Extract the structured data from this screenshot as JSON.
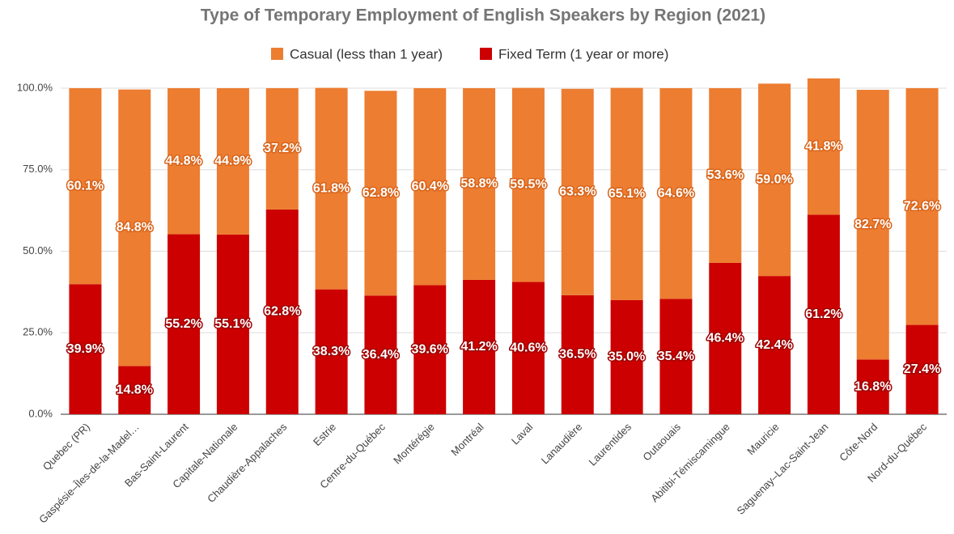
{
  "chart_data": {
    "type": "stacked_bar",
    "title": "Type of Temporary Employment of English Speakers by Region (2021)",
    "categories": [
      "Quebec (PR)",
      "Gaspésie–Îles-de-la-Madel…",
      "Bas-Saint-Laurent",
      "Capitale-Nationale",
      "Chaudière-Appalaches",
      "Estrie",
      "Centre-du-Québec",
      "Montérégie",
      "Montréal",
      "Laval",
      "Lanaudière",
      "Laurentides",
      "Outaouais",
      "Abitibi-Témiscamingue",
      "Mauricie",
      "Saguenay–Lac-Saint-Jean",
      "Côte-Nord",
      "Nord-du-Québec"
    ],
    "series": [
      {
        "name": "Casual (less than 1 year)",
        "color": "#ed7d31",
        "values": [
          60.1,
          84.8,
          44.8,
          44.9,
          37.2,
          61.8,
          62.8,
          60.4,
          58.8,
          59.5,
          63.3,
          65.1,
          64.6,
          53.6,
          59.0,
          41.8,
          82.7,
          72.6
        ],
        "value_labels": [
          "60.1%",
          "84.8%",
          "44.8%",
          "44.9%",
          "37.2%",
          "61.8%",
          "62.8%",
          "60.4%",
          "58.8%",
          "59.5%",
          "63.3%",
          "65.1%",
          "64.6%",
          "53.6%",
          "59.0%",
          "41.8%",
          "82.7%",
          "72.6%"
        ]
      },
      {
        "name": "Fixed Term (1 year or more)",
        "color": "#cc0000",
        "values": [
          39.9,
          14.8,
          55.2,
          55.1,
          62.8,
          38.3,
          36.4,
          39.6,
          41.2,
          40.6,
          36.5,
          35.0,
          35.4,
          46.4,
          42.4,
          61.2,
          16.8,
          27.4
        ],
        "value_labels": [
          "39.9%",
          "14.8%",
          "55.2%",
          "55.1%",
          "62.8%",
          "38.3%",
          "36.4%",
          "39.6%",
          "41.2%",
          "40.6%",
          "36.5%",
          "35.0%",
          "35.4%",
          "46.4%",
          "42.4%",
          "61.2%",
          "16.8%",
          "27.4%"
        ]
      }
    ],
    "ylim": [
      0,
      100
    ],
    "yticks": [
      {
        "value": 0,
        "label": "0.0%"
      },
      {
        "value": 25,
        "label": "25.0%"
      },
      {
        "value": 50,
        "label": "50.0%"
      },
      {
        "value": 75,
        "label": "75.0%"
      },
      {
        "value": 100,
        "label": "100.0%"
      }
    ],
    "legend": "top"
  }
}
